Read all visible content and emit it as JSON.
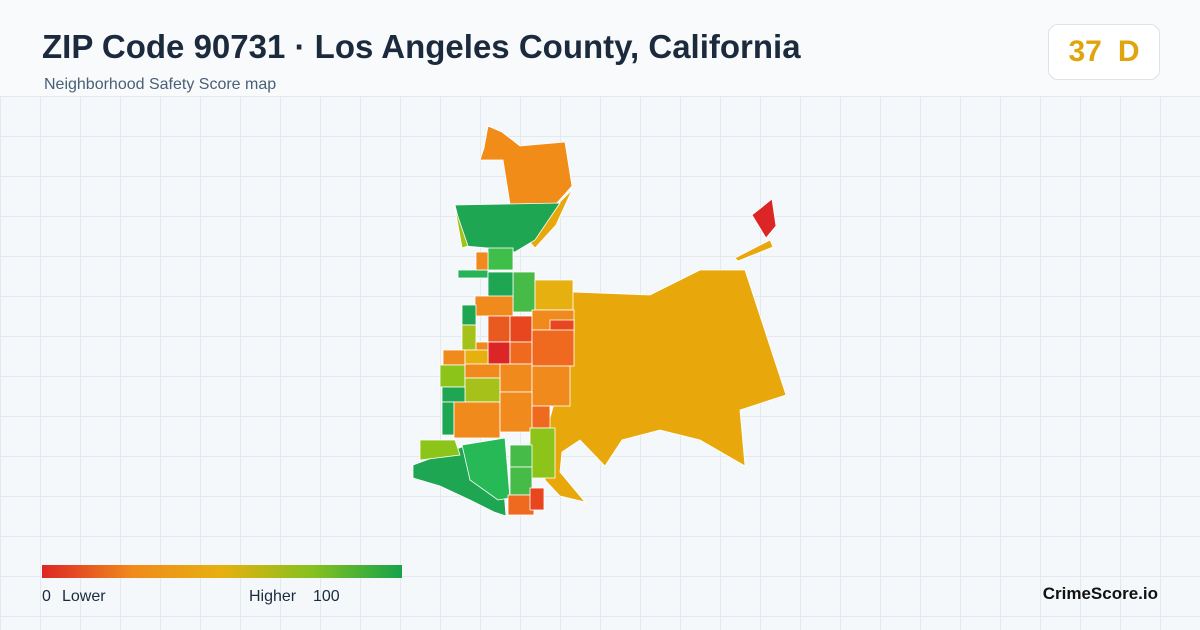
{
  "header": {
    "title": "ZIP Code 90731 · Los Angeles County, California",
    "subtitle": "Neighborhood Safety Score map"
  },
  "score": {
    "value": 37,
    "grade": "D"
  },
  "legend": {
    "min": 0,
    "min_label": "Lower",
    "max_label": "Higher",
    "max": 100
  },
  "brand": "CrimeScore.io"
}
